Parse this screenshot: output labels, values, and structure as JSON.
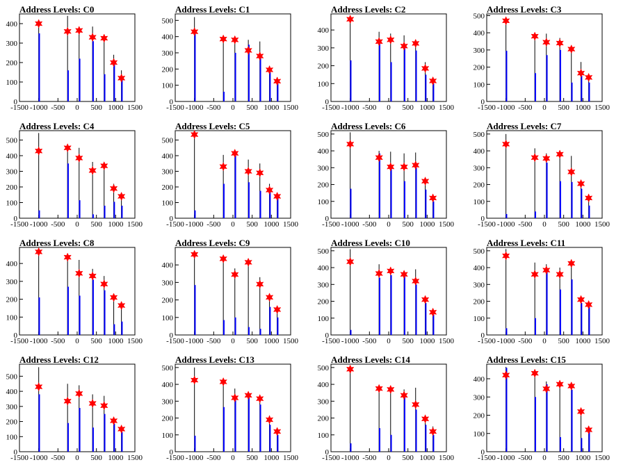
{
  "colors": {
    "black_hist": "#000000",
    "blue_hist": "#0000ff",
    "marker": "#ff0000",
    "frame": "#000000"
  },
  "xaxis": {
    "range": [
      -1500,
      1500
    ],
    "ticks": [
      -1500,
      -1000,
      -500,
      0,
      500,
      1000,
      1500
    ],
    "tick_labels": [
      "-1500",
      "-1000",
      "-500",
      "0",
      "500",
      "1000",
      "1500"
    ]
  },
  "chart_data": [
    {
      "type": "bar",
      "title": "Address Levels: C0",
      "ylim": [
        0,
        450
      ],
      "yticks": [
        0,
        100,
        200,
        300,
        400
      ],
      "peaks_x": [
        -1000,
        -250,
        50,
        400,
        700,
        950,
        1150
      ],
      "black_values": [
        420,
        440,
        380,
        385,
        340,
        240,
        160
      ],
      "blue_values": [
        350,
        160,
        220,
        310,
        140,
        190,
        120
      ],
      "markers": [
        400,
        360,
        365,
        330,
        325,
        200,
        120
      ]
    },
    {
      "type": "bar",
      "title": "Address Levels: C1",
      "ylim": [
        0,
        540
      ],
      "yticks": [
        0,
        100,
        200,
        300,
        400,
        500
      ],
      "peaks_x": [
        -1000,
        -250,
        50,
        400,
        700,
        950,
        1150
      ],
      "black_values": [
        520,
        390,
        395,
        380,
        370,
        220,
        150
      ],
      "blue_values": [
        430,
        60,
        300,
        350,
        280,
        180,
        110
      ],
      "markers": [
        430,
        385,
        380,
        315,
        280,
        195,
        125
      ]
    },
    {
      "type": "bar",
      "title": "Address Levels: C2",
      "ylim": [
        0,
        490
      ],
      "yticks": [
        0,
        100,
        200,
        300,
        400
      ],
      "peaks_x": [
        -1000,
        -250,
        50,
        400,
        700,
        950,
        1150
      ],
      "black_values": [
        470,
        390,
        380,
        370,
        330,
        220,
        130
      ],
      "blue_values": [
        230,
        340,
        220,
        310,
        285,
        150,
        100
      ],
      "markers": [
        460,
        335,
        345,
        310,
        325,
        185,
        115
      ]
    },
    {
      "type": "bar",
      "title": "Address Levels: C3",
      "ylim": [
        0,
        510
      ],
      "yticks": [
        0,
        100,
        200,
        300,
        400,
        500
      ],
      "peaks_x": [
        -1000,
        -250,
        50,
        400,
        700,
        950,
        1150
      ],
      "black_values": [
        490,
        390,
        395,
        370,
        320,
        230,
        150
      ],
      "blue_values": [
        295,
        165,
        270,
        300,
        110,
        150,
        110
      ],
      "markers": [
        470,
        380,
        345,
        340,
        305,
        165,
        140
      ]
    },
    {
      "type": "bar",
      "title": "Address Levels: C4",
      "ylim": [
        0,
        560
      ],
      "yticks": [
        0,
        100,
        200,
        300,
        400,
        500
      ],
      "peaks_x": [
        -1000,
        -250,
        50,
        400,
        700,
        950,
        1150
      ],
      "black_values": [
        545,
        460,
        450,
        360,
        330,
        220,
        150
      ],
      "blue_values": [
        50,
        350,
        115,
        25,
        80,
        105,
        80
      ],
      "markers": [
        430,
        450,
        385,
        305,
        335,
        190,
        140
      ]
    },
    {
      "type": "bar",
      "title": "Address Levels: C5",
      "ylim": [
        0,
        560
      ],
      "yticks": [
        0,
        100,
        200,
        300,
        400,
        500
      ],
      "peaks_x": [
        -1000,
        -250,
        50,
        400,
        700,
        950,
        1150
      ],
      "black_values": [
        540,
        405,
        420,
        375,
        350,
        220,
        150
      ],
      "blue_values": [
        50,
        220,
        400,
        230,
        175,
        185,
        140
      ],
      "markers": [
        535,
        330,
        415,
        300,
        290,
        180,
        140
      ]
    },
    {
      "type": "bar",
      "title": "Address Levels: C6",
      "ylim": [
        0,
        520
      ],
      "yticks": [
        0,
        100,
        200,
        300,
        400,
        500
      ],
      "peaks_x": [
        -1000,
        -250,
        50,
        400,
        700,
        950,
        1150
      ],
      "black_values": [
        510,
        400,
        395,
        385,
        390,
        210,
        140
      ],
      "blue_values": [
        175,
        385,
        300,
        220,
        300,
        170,
        100
      ],
      "markers": [
        440,
        360,
        305,
        305,
        315,
        220,
        120
      ]
    },
    {
      "type": "bar",
      "title": "Address Levels: C7",
      "ylim": [
        0,
        520
      ],
      "yticks": [
        0,
        100,
        200,
        300,
        400,
        500
      ],
      "peaks_x": [
        -1000,
        -250,
        50,
        400,
        700,
        950,
        1150
      ],
      "black_values": [
        500,
        415,
        385,
        380,
        370,
        215,
        130
      ],
      "blue_values": [
        25,
        40,
        330,
        220,
        215,
        175,
        75
      ],
      "markers": [
        440,
        360,
        355,
        380,
        275,
        205,
        120
      ]
    },
    {
      "type": "bar",
      "title": "Address Levels: C8",
      "ylim": [
        0,
        490
      ],
      "yticks": [
        0,
        100,
        200,
        300,
        400
      ],
      "peaks_x": [
        -1000,
        -250,
        50,
        400,
        700,
        950,
        1150
      ],
      "black_values": [
        475,
        455,
        420,
        370,
        330,
        210,
        160
      ],
      "blue_values": [
        210,
        270,
        220,
        310,
        250,
        60,
        75
      ],
      "markers": [
        465,
        435,
        345,
        330,
        285,
        210,
        165
      ]
    },
    {
      "type": "bar",
      "title": "Address Levels: C9",
      "ylim": [
        0,
        500
      ],
      "yticks": [
        0,
        100,
        200,
        300,
        400
      ],
      "peaks_x": [
        -1000,
        -250,
        50,
        400,
        700,
        950,
        1150
      ],
      "black_values": [
        480,
        440,
        380,
        410,
        330,
        230,
        160
      ],
      "blue_values": [
        285,
        85,
        100,
        45,
        35,
        160,
        100
      ],
      "markers": [
        460,
        435,
        345,
        415,
        290,
        215,
        145
      ]
    },
    {
      "type": "bar",
      "title": "Address Levels: C10",
      "ylim": [
        0,
        520
      ],
      "yticks": [
        0,
        100,
        200,
        300,
        400,
        500
      ],
      "peaks_x": [
        -1000,
        -250,
        50,
        400,
        700,
        950,
        1150
      ],
      "black_values": [
        510,
        420,
        395,
        375,
        390,
        220,
        140
      ],
      "blue_values": [
        30,
        340,
        355,
        360,
        300,
        190,
        120
      ],
      "markers": [
        435,
        365,
        380,
        360,
        320,
        210,
        135
      ]
    },
    {
      "type": "bar",
      "title": "Address Levels: C11",
      "ylim": [
        0,
        520
      ],
      "yticks": [
        0,
        100,
        200,
        300,
        400,
        500
      ],
      "peaks_x": [
        -1000,
        -250,
        50,
        400,
        700,
        950,
        1150
      ],
      "black_values": [
        510,
        430,
        420,
        400,
        440,
        200,
        180
      ],
      "blue_values": [
        40,
        100,
        375,
        270,
        330,
        190,
        165
      ],
      "markers": [
        470,
        360,
        385,
        360,
        425,
        210,
        180
      ]
    },
    {
      "type": "bar",
      "title": "Address Levels: C12",
      "ylim": [
        0,
        580
      ],
      "yticks": [
        0,
        100,
        200,
        300,
        400,
        500
      ],
      "peaks_x": [
        -1000,
        -250,
        50,
        400,
        700,
        950,
        1150
      ],
      "black_values": [
        560,
        450,
        440,
        380,
        370,
        225,
        150
      ],
      "blue_values": [
        380,
        190,
        290,
        160,
        250,
        185,
        130
      ],
      "markers": [
        430,
        335,
        385,
        320,
        305,
        205,
        150
      ]
    },
    {
      "type": "bar",
      "title": "Address Levels: C13",
      "ylim": [
        0,
        520
      ],
      "yticks": [
        0,
        100,
        200,
        300,
        400,
        500
      ],
      "peaks_x": [
        -1000,
        -250,
        50,
        400,
        700,
        950,
        1150
      ],
      "black_values": [
        500,
        420,
        375,
        355,
        330,
        215,
        130
      ],
      "blue_values": [
        95,
        265,
        305,
        335,
        280,
        160,
        100
      ],
      "markers": [
        425,
        415,
        320,
        335,
        315,
        190,
        120
      ]
    },
    {
      "type": "bar",
      "title": "Address Levels: C14",
      "ylim": [
        0,
        520
      ],
      "yticks": [
        0,
        100,
        200,
        300,
        400,
        500
      ],
      "peaks_x": [
        -1000,
        -250,
        50,
        400,
        700,
        950,
        1150
      ],
      "black_values": [
        510,
        390,
        380,
        370,
        380,
        215,
        150
      ],
      "blue_values": [
        50,
        140,
        100,
        330,
        250,
        160,
        100
      ],
      "markers": [
        490,
        375,
        370,
        335,
        280,
        195,
        120
      ]
    },
    {
      "type": "bar",
      "title": "Address Levels: C15",
      "ylim": [
        0,
        480
      ],
      "yticks": [
        0,
        100,
        200,
        300,
        400
      ],
      "peaks_x": [
        -1000,
        -250,
        50,
        400,
        700,
        950,
        1150
      ],
      "black_values": [
        465,
        450,
        385,
        380,
        365,
        215,
        140
      ],
      "blue_values": [
        460,
        300,
        370,
        80,
        340,
        75,
        120
      ],
      "markers": [
        420,
        430,
        345,
        370,
        360,
        220,
        120
      ]
    }
  ]
}
